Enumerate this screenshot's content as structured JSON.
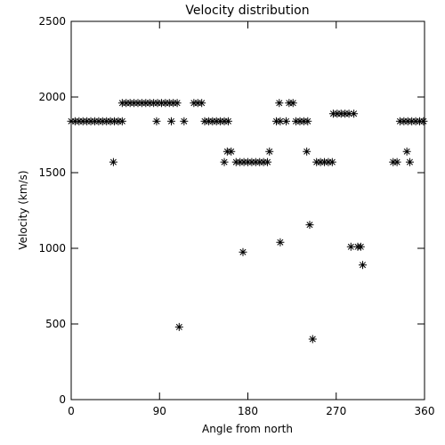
{
  "chart_data": {
    "type": "scatter",
    "title": "Velocity distribution",
    "x_label": "Angle from north",
    "y_label": "Velocity (km/s)",
    "color": "#000000",
    "xlim": [
      0,
      360
    ],
    "xticks": [
      0,
      90,
      180,
      270,
      360
    ],
    "ylim": [
      0,
      2500
    ],
    "yticks": [
      0,
      500,
      1000,
      1500,
      2000,
      2500
    ],
    "x": [
      0,
      4,
      8,
      12,
      16,
      20,
      24,
      28,
      32,
      36,
      40,
      44,
      48,
      52,
      87,
      102,
      115,
      136,
      140,
      144,
      148,
      152,
      156,
      160,
      209,
      213,
      219,
      229,
      233,
      237,
      241,
      335,
      339,
      343,
      347,
      351,
      355,
      359,
      52,
      56,
      60,
      64,
      68,
      72,
      76,
      80,
      84,
      88,
      92,
      96,
      100,
      104,
      108,
      125,
      129,
      133,
      212,
      222,
      226,
      267,
      271,
      275,
      279,
      283,
      288,
      159,
      163,
      202,
      240,
      342,
      43,
      156,
      168,
      172,
      176,
      180,
      184,
      188,
      192,
      196,
      200,
      250,
      254,
      258,
      262,
      266,
      328,
      332,
      345,
      110,
      175,
      213,
      243,
      246,
      285,
      292,
      295,
      297
    ],
    "values": [
      1840,
      1840,
      1840,
      1840,
      1840,
      1840,
      1840,
      1840,
      1840,
      1840,
      1840,
      1840,
      1840,
      1840,
      1840,
      1840,
      1840,
      1840,
      1840,
      1840,
      1840,
      1840,
      1840,
      1840,
      1840,
      1840,
      1840,
      1840,
      1840,
      1840,
      1840,
      1840,
      1840,
      1840,
      1840,
      1840,
      1840,
      1840,
      1960,
      1960,
      1960,
      1960,
      1960,
      1960,
      1960,
      1960,
      1960,
      1960,
      1960,
      1960,
      1960,
      1960,
      1960,
      1960,
      1960,
      1960,
      1960,
      1960,
      1960,
      1890,
      1890,
      1890,
      1890,
      1890,
      1890,
      1640,
      1640,
      1640,
      1640,
      1640,
      1570,
      1570,
      1570,
      1570,
      1570,
      1570,
      1570,
      1570,
      1570,
      1570,
      1570,
      1570,
      1570,
      1570,
      1570,
      1570,
      1570,
      1570,
      1570,
      480,
      975,
      1040,
      1155,
      400,
      1010,
      1010,
      1010,
      890
    ]
  }
}
